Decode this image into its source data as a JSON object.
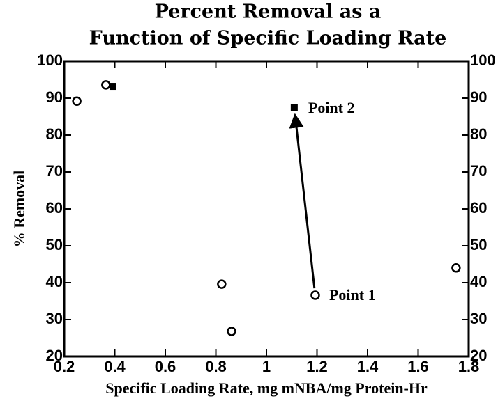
{
  "chart_data": {
    "type": "scatter",
    "title": [
      "Percent Removal as a",
      "Function of Specific Loading Rate"
    ],
    "xlabel": "Specific Loading Rate, mg mNBA/mg Protein-Hr",
    "ylabel": "% Removal",
    "series": [
      {
        "marker": "open-circle",
        "color": "#000000",
        "x": [
          0.25,
          0.365,
          0.823,
          0.862,
          1.193,
          1.75
        ],
        "values": [
          89.2,
          93.6,
          39.6,
          26.8,
          36.6,
          44
        ]
      },
      {
        "marker": "filled-square",
        "color": "#000000",
        "x": [
          0.393,
          1.11
        ],
        "values": [
          93.2,
          87.4
        ]
      }
    ],
    "annotations": [
      {
        "text": "Point 1",
        "x": 1.193,
        "y": 36.6
      },
      {
        "text": "Point 2",
        "x": 1.11,
        "y": 87.4
      }
    ],
    "xlim": [
      0.2,
      1.8
    ],
    "xticks": [
      0.2,
      0.4,
      0.6,
      0.8,
      1,
      1.2,
      1.4,
      1.6,
      1.8
    ],
    "ylim": [
      20,
      100
    ],
    "yticks": [
      20,
      30,
      40,
      50,
      60,
      70,
      80,
      90,
      100
    ],
    "y2lim": [
      20,
      100
    ],
    "y2ticks": [
      20,
      30,
      40,
      50,
      60,
      70,
      80,
      90,
      100
    ],
    "grid": false
  }
}
